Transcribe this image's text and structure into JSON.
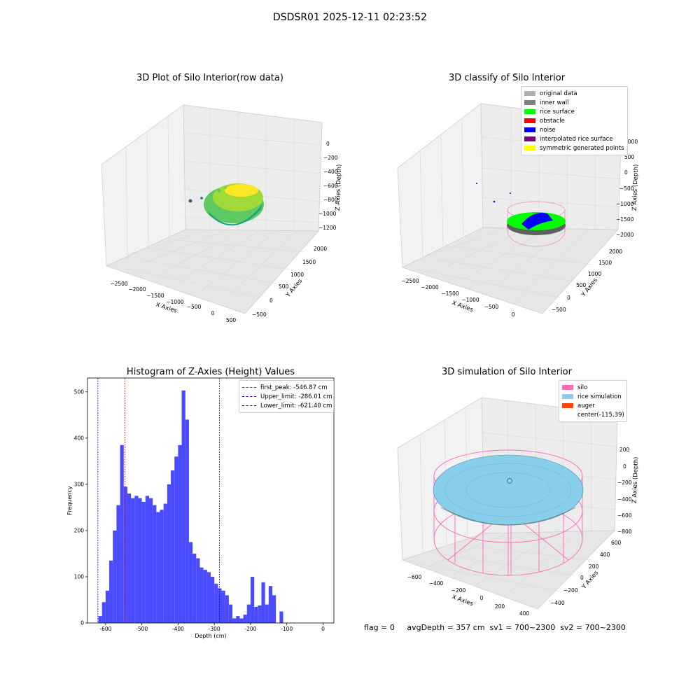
{
  "suptitle": "DSDSR01 2025-12-11 02:23:52",
  "panels": {
    "raw": {
      "title": "3D Plot of Silo Interior(row data)",
      "xlabel": "X Axies",
      "ylabel": "Y Axies",
      "zlabel": "Z Axies (Depth)",
      "xticks": [
        "−2500",
        "−2000",
        "−1500",
        "−1000",
        "−500",
        "0",
        "500"
      ],
      "yticks": [
        "−500",
        "0",
        "500",
        "1000",
        "1500",
        "2000"
      ],
      "zticks": [
        "0",
        "−200",
        "−400",
        "−600",
        "−800",
        "−1000",
        "−1200"
      ]
    },
    "classify": {
      "title": "3D classify of Silo Interior",
      "xlabel": "X Axies",
      "ylabel": "Y Axies",
      "zlabel": "Z Axies (Depth)",
      "xticks": [
        "−2500",
        "−2000",
        "−1500",
        "−1000",
        "−500",
        "0"
      ],
      "yticks": [
        "−500",
        "0",
        "500",
        "1000",
        "1500",
        "2000"
      ],
      "zticks": [
        "1000",
        "500",
        "0",
        "−500",
        "−1000",
        "−1500",
        "−2000"
      ],
      "legend": [
        {
          "label": "original data",
          "color": "#b0b0b0"
        },
        {
          "label": "inner wall",
          "color": "#808080"
        },
        {
          "label": "rice surface",
          "color": "#00ff00"
        },
        {
          "label": "obstacle",
          "color": "#ff0000"
        },
        {
          "label": "noise",
          "color": "#0000ff"
        },
        {
          "label": "interpolated rice surface",
          "color": "#800080"
        },
        {
          "label": "symmetric generated points",
          "color": "#ffff00"
        }
      ]
    },
    "simulation": {
      "title": "3D simulation of Silo Interior",
      "xlabel": "X Axies",
      "ylabel": "Y Axies",
      "zlabel": "Z Axies (Depth)",
      "xticks": [
        "−600",
        "−400",
        "−200",
        "0",
        "200",
        "400"
      ],
      "yticks": [
        "−400",
        "−200",
        "0",
        "200",
        "400",
        "600"
      ],
      "zticks": [
        "200",
        "0",
        "−200",
        "−400",
        "−600",
        "−800"
      ],
      "legend": [
        {
          "label": "silo",
          "color": "#ff69b4"
        },
        {
          "label": "rice simulation",
          "color": "#87ceeb"
        },
        {
          "label": "auger",
          "color": "#ff4500"
        },
        {
          "label": "center(-115,39)",
          "color": ""
        }
      ]
    }
  },
  "chart_data": {
    "type": "bar",
    "title": "Histogram of Z-Axies (Height) Values",
    "xlabel": "Depth (cm)",
    "ylabel": "Frequency",
    "xlim": [
      -650,
      30
    ],
    "ylim": [
      0,
      530
    ],
    "xticks": [
      -600,
      -500,
      -400,
      -300,
      -200,
      -100,
      0
    ],
    "yticks": [
      0,
      100,
      200,
      300,
      400,
      500
    ],
    "bin_width": 10,
    "bin_starts": [
      -630,
      -620,
      -610,
      -600,
      -590,
      -580,
      -570,
      -560,
      -550,
      -540,
      -530,
      -520,
      -510,
      -500,
      -490,
      -480,
      -470,
      -460,
      -450,
      -440,
      -430,
      -420,
      -410,
      -400,
      -390,
      -380,
      -370,
      -360,
      -350,
      -340,
      -330,
      -320,
      -310,
      -300,
      -290,
      -280,
      -270,
      -260,
      -250,
      -240,
      -230,
      -220,
      -210,
      -200,
      -190,
      -180,
      -170,
      -160,
      -150,
      -140,
      -130,
      -120,
      -110,
      -100,
      -90,
      -80,
      -70,
      -60,
      -50,
      -40,
      -30,
      -20,
      -10,
      0
    ],
    "values": [
      0,
      15,
      45,
      70,
      135,
      200,
      255,
      385,
      295,
      280,
      270,
      275,
      270,
      262,
      275,
      270,
      255,
      240,
      245,
      258,
      300,
      330,
      360,
      385,
      503,
      440,
      175,
      150,
      140,
      120,
      115,
      110,
      100,
      85,
      75,
      70,
      60,
      40,
      10,
      15,
      10,
      18,
      40,
      100,
      35,
      38,
      88,
      40,
      80,
      60,
      0,
      25,
      0,
      0,
      0,
      0,
      0,
      0,
      0,
      0,
      0,
      0,
      0,
      0
    ],
    "bar_color": "#4a4aff",
    "lines": [
      {
        "label": "first_peak: -546.87 cm",
        "x": -546.87,
        "color": "#ff0000"
      },
      {
        "label": "Upper_limit: -286.01 cm",
        "x": -286.01,
        "color": "#0000ff"
      },
      {
        "label": "Lower_limit: -621.40 cm",
        "x": -621.4,
        "color": "#0000ff"
      }
    ],
    "legend_position": "top-right"
  },
  "status": {
    "text": "flag = 0     avgDepth = 357 cm  sv1 = 700~2300  sv2 = 700~2300"
  }
}
